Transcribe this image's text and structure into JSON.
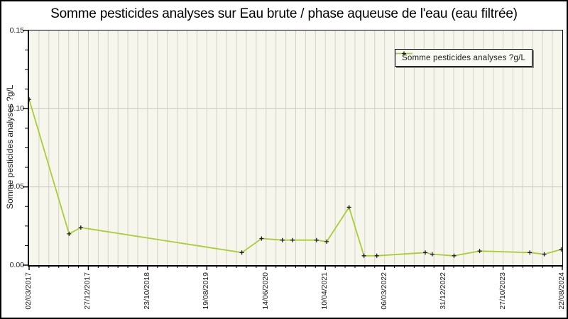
{
  "chart_data": {
    "type": "line",
    "title": "Somme pesticides analyses sur Eau brute / phase aqueuse de l'eau (eau filtrée)",
    "xlabel": "",
    "ylabel": "Somme pesticides analyses ?g/L",
    "ylim": [
      0,
      0.15
    ],
    "y_ticks": [
      0,
      0.05,
      0.1,
      0.15
    ],
    "y_tick_labels": [
      "0.00",
      "0.05",
      "0.10",
      "0.15"
    ],
    "x_tick_labels": [
      "02/03/2017",
      "27/12/2017",
      "23/10/2018",
      "19/08/2019",
      "14/06/2020",
      "10/04/2021",
      "06/03/2022",
      "31/12/2022",
      "27/10/2023",
      "22/08/2024"
    ],
    "grid": {
      "vertical_minor_intervals_per_major": 6,
      "y_minor_intervals_per_major": 4,
      "horizontal_gridlines_at": [
        0.05,
        0.1
      ]
    },
    "legend": {
      "position": "top-right",
      "label": "Somme pesticides analyses ?g/L"
    },
    "series": [
      {
        "name": "Somme pesticides analyses ?g/L",
        "line_color": "#a9cd35",
        "marker": "plus",
        "marker_color": "#1c1c1c",
        "x_encoding": "x_frac = fraction of x-axis between first tick (02/03/2017) and last tick (22/08/2024)",
        "points": [
          {
            "x_frac": 0.0,
            "y": 0.106
          },
          {
            "x_frac": 0.075,
            "y": 0.02
          },
          {
            "x_frac": 0.097,
            "y": 0.024
          },
          {
            "x_frac": 0.399,
            "y": 0.008
          },
          {
            "x_frac": 0.436,
            "y": 0.017
          },
          {
            "x_frac": 0.475,
            "y": 0.016
          },
          {
            "x_frac": 0.494,
            "y": 0.016
          },
          {
            "x_frac": 0.539,
            "y": 0.016
          },
          {
            "x_frac": 0.558,
            "y": 0.015
          },
          {
            "x_frac": 0.6,
            "y": 0.037
          },
          {
            "x_frac": 0.628,
            "y": 0.006
          },
          {
            "x_frac": 0.652,
            "y": 0.006
          },
          {
            "x_frac": 0.743,
            "y": 0.008
          },
          {
            "x_frac": 0.756,
            "y": 0.007
          },
          {
            "x_frac": 0.797,
            "y": 0.006
          },
          {
            "x_frac": 0.845,
            "y": 0.009
          },
          {
            "x_frac": 0.939,
            "y": 0.008
          },
          {
            "x_frac": 0.966,
            "y": 0.007
          },
          {
            "x_frac": 0.998,
            "y": 0.01
          }
        ]
      }
    ],
    "colors": {
      "plot_background": "#f6f6ec",
      "vertical_stripe": "#d2d2c8",
      "horizontal_grid": "#c9c9c0",
      "frame": "#000000",
      "text": "#1a1a1a",
      "legend_background": "#fafaf4"
    }
  }
}
